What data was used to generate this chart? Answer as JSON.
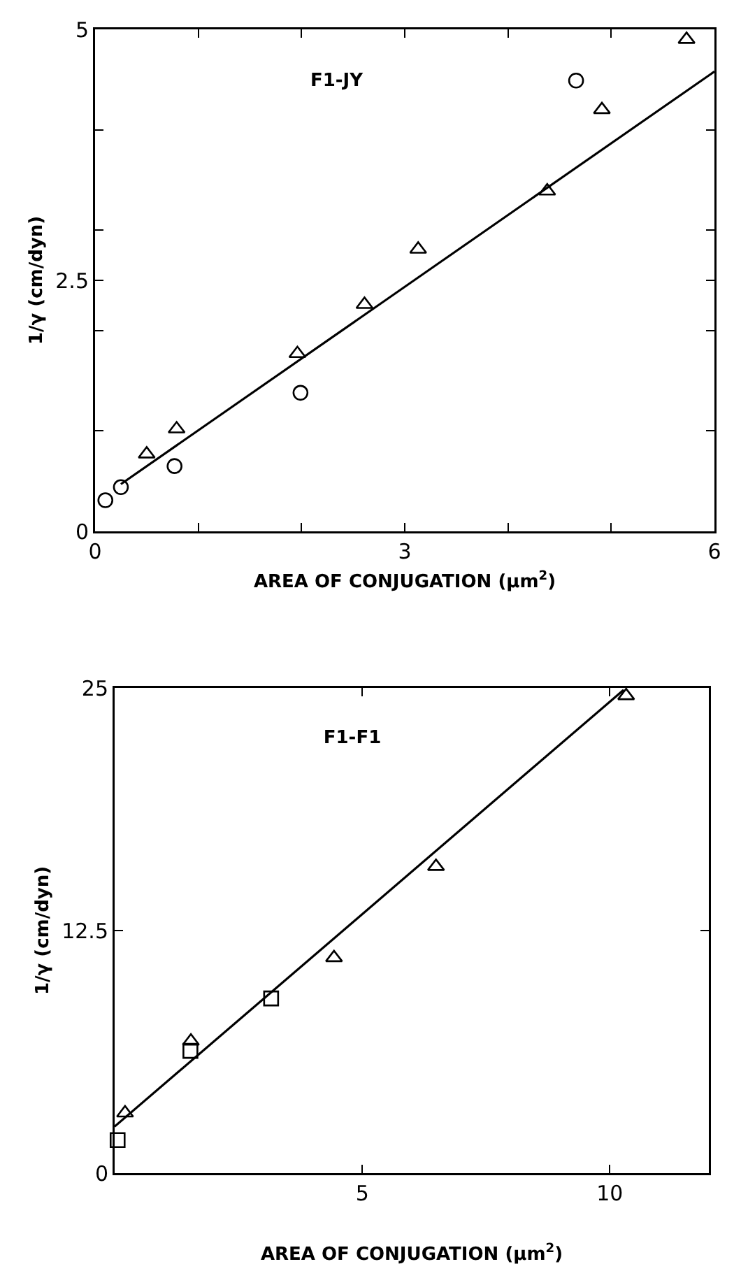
{
  "chart_data": [
    {
      "type": "scatter",
      "title": "F1-JY",
      "xlabel": "AREA OF CONJUGATION (μm$^{2}$)",
      "ylabel": "1/γ (cm/dyn)",
      "xlim": [
        0,
        6
      ],
      "ylim": [
        0,
        5
      ],
      "xticks": [
        0,
        {
          "value": 1,
          "label": null
        },
        {
          "value": 2,
          "label": null
        },
        3,
        {
          "value": 4,
          "label": null
        },
        {
          "value": 5,
          "label": null
        },
        6
      ],
      "yticks": [
        0,
        {
          "value": 1,
          "label": null
        },
        {
          "value": 2,
          "label": null
        },
        2.5,
        {
          "value": 3,
          "label": null
        },
        {
          "value": 4,
          "label": null
        },
        5
      ],
      "series": [
        {
          "color": "#000000",
          "marker": "circle",
          "x": [
            0.1,
            0.25,
            0.77,
            1.99,
            4.66
          ],
          "values": [
            0.31,
            0.44,
            0.65,
            1.38,
            4.49
          ]
        },
        {
          "color": "#000000",
          "marker": "triangle",
          "x": [
            0.5,
            0.79,
            1.96,
            2.61,
            3.13,
            4.38,
            4.91,
            5.73
          ],
          "values": [
            0.77,
            1.02,
            1.77,
            2.26,
            2.81,
            3.39,
            4.2,
            4.9
          ]
        },
        {
          "type": "line",
          "color": "#000000",
          "line_style": "solid",
          "x": [
            0.25,
            6
          ],
          "values": [
            0.47,
            4.58
          ]
        }
      ]
    },
    {
      "type": "scatter",
      "title": "F1-F1",
      "xlabel": "AREA OF CONJUGATION (μm$^{2}$)",
      "ylabel": "1/γ (cm/dyn)",
      "xlim": [
        0,
        12
      ],
      "ylim": [
        0,
        25
      ],
      "xticks": [
        5,
        10
      ],
      "yticks": [
        0,
        12.5,
        25
      ],
      "series": [
        {
          "color": "#000000",
          "marker": "triangle",
          "x": [
            0.21,
            1.54,
            4.43,
            6.49,
            10.33
          ],
          "values": [
            3.1,
            6.8,
            11.1,
            15.8,
            24.6
          ]
        },
        {
          "color": "#000000",
          "marker": "square",
          "x": [
            0.06,
            1.53,
            3.16
          ],
          "values": [
            1.7,
            6.3,
            9.0
          ]
        },
        {
          "type": "line",
          "color": "#000000",
          "line_style": "solid",
          "x": [
            0,
            10.28
          ],
          "values": [
            2.4,
            24.9
          ]
        }
      ]
    }
  ]
}
